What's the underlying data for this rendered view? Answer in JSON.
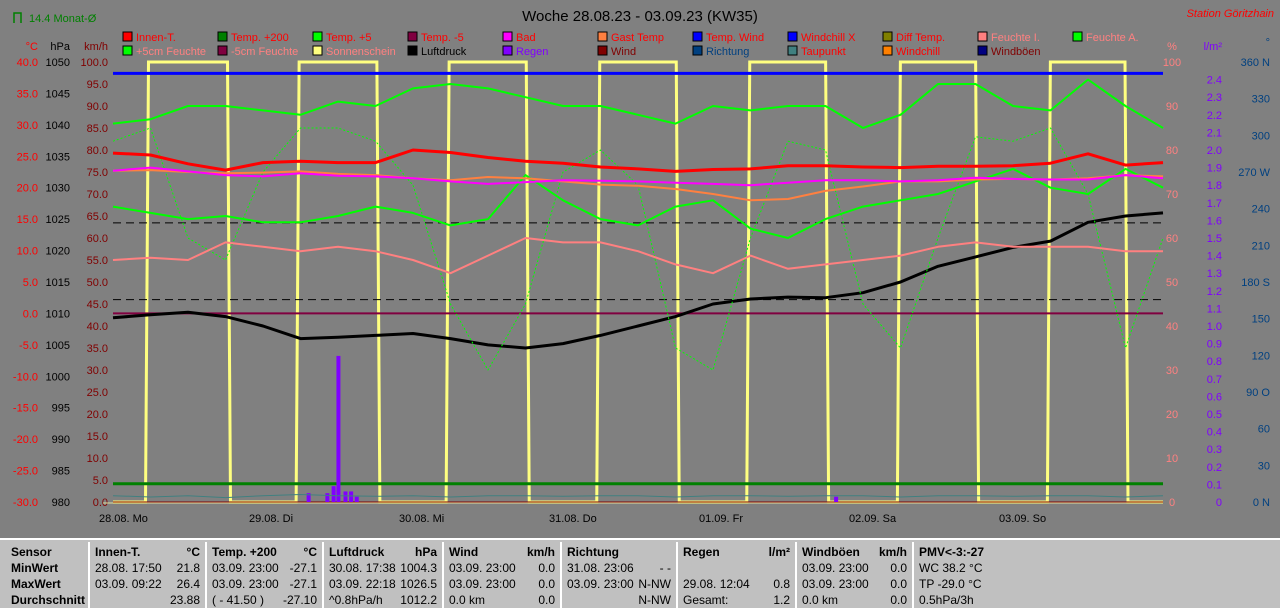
{
  "title": "Woche 28.08.23 - 03.09.23 (KW35)",
  "station": "Station Göritzhain",
  "monthly_avg": "14.4 Monat-Ø",
  "legend": [
    {
      "label": "Innen-T.",
      "color": "#ff0000",
      "text": "#ff0000"
    },
    {
      "label": "Temp. +200",
      "color": "#008000",
      "text": "#ff0000"
    },
    {
      "label": "Temp. +5",
      "color": "#00ff00",
      "text": "#ff0000"
    },
    {
      "label": "Temp. -5",
      "color": "#800040",
      "text": "#ff0000"
    },
    {
      "label": "Bad",
      "color": "#ff00ff",
      "text": "#ff0000"
    },
    {
      "label": "Gast Temp",
      "color": "#ff8040",
      "text": "#ff0000"
    },
    {
      "label": "Temp. Wind",
      "color": "#0000ff",
      "text": "#ff0000"
    },
    {
      "label": "Windchill X",
      "color": "#0000ff",
      "text": "#ff0000"
    },
    {
      "label": "Diff Temp.",
      "color": "#808000",
      "text": "#ff0000"
    },
    {
      "label": "Feuchte I.",
      "color": "#ff8080",
      "text": "#ff8080"
    },
    {
      "label": "Feuchte A.",
      "color": "#00ff00",
      "text": "#ff8080"
    },
    {
      "label": "+5cm Feuchte",
      "color": "#00ff00",
      "text": "#ff8080"
    },
    {
      "label": "-5cm Feuchte",
      "color": "#800040",
      "text": "#ff8080"
    },
    {
      "label": "Sonnenschein",
      "color": "#ffff80",
      "text": "#ff8080"
    },
    {
      "label": "Luftdruck",
      "color": "#000000",
      "text": "#000000"
    },
    {
      "label": "Regen",
      "color": "#8000ff",
      "text": "#8000ff"
    },
    {
      "label": "Wind",
      "color": "#800000",
      "text": "#800000"
    },
    {
      "label": "Richtung",
      "color": "#004080",
      "text": "#004080"
    },
    {
      "label": "Taupunkt",
      "color": "#408080",
      "text": "#ff0000"
    },
    {
      "label": "Windchill",
      "color": "#ff8000",
      "text": "#ff0000"
    },
    {
      "label": "Windböen",
      "color": "#000080",
      "text": "#800000"
    }
  ],
  "axes": {
    "celsius": {
      "unit": "°C",
      "color": "#ff0000",
      "ticks": [
        "40.0",
        "35.0",
        "30.0",
        "25.0",
        "20.0",
        "15.0",
        "10.0",
        "5.0",
        "0.0",
        "-5.0",
        "-10.0",
        "-15.0",
        "-20.0",
        "-25.0",
        "-30.0"
      ]
    },
    "hpa": {
      "unit": "hPa",
      "color": "#000000",
      "ticks": [
        "1050",
        "1045",
        "1040",
        "1035",
        "1030",
        "1025",
        "1020",
        "1015",
        "1010",
        "1005",
        "1000",
        "995",
        "990",
        "985",
        "980"
      ]
    },
    "kmh": {
      "unit": "km/h",
      "color": "#800000",
      "ticks": [
        "100.0",
        "95.0",
        "90.0",
        "85.0",
        "80.0",
        "75.0",
        "70.0",
        "65.0",
        "60.0",
        "55.0",
        "50.0",
        "45.0",
        "40.0",
        "35.0",
        "30.0",
        "25.0",
        "20.0",
        "15.0",
        "10.0",
        "5.0",
        "0.0"
      ]
    },
    "percent": {
      "unit": "%",
      "color": "#ff8080",
      "ticks": [
        "100",
        "90",
        "80",
        "70",
        "60",
        "50",
        "40",
        "30",
        "20",
        "10",
        "0"
      ]
    },
    "rain": {
      "unit": "l/m²",
      "color": "#8000ff",
      "ticks": [
        "2.4",
        "2.3",
        "2.2",
        "2.1",
        "2.0",
        "1.9",
        "1.8",
        "1.7",
        "1.6",
        "1.5",
        "1.4",
        "1.3",
        "1.2",
        "1.1",
        "1.0",
        "0.9",
        "0.8",
        "0.7",
        "0.6",
        "0.5",
        "0.4",
        "0.3",
        "0.2",
        "0.1",
        "0"
      ]
    },
    "direction": {
      "unit": "°",
      "color": "#004080",
      "ticks": [
        "360 N",
        "330",
        "300",
        "270 W",
        "240",
        "210",
        "180 S",
        "150",
        "120",
        "90 O",
        "60",
        "30",
        "0 N"
      ]
    }
  },
  "chart_data": {
    "type": "line",
    "title": "Woche 28.08.23 - 03.09.23 (KW35)",
    "x_labels": [
      "28.08.  Mo",
      "29.08.  Di",
      "30.08.  Mi",
      "31.08.  Do",
      "01.09.  Fr",
      "02.09.  Sa",
      "03.09.  So"
    ],
    "x_step_hours": 6,
    "x_range_hours": [
      0,
      168
    ],
    "series": [
      {
        "name": "Luftdruck",
        "axis": "hpa",
        "color": "#000000",
        "width": 3,
        "values": [
          1009.3,
          1009.8,
          1010.2,
          1009.5,
          1008,
          1006,
          1006.2,
          1006.5,
          1006.8,
          1006,
          1005,
          1004.5,
          1005.2,
          1006.5,
          1008,
          1009.5,
          1011.5,
          1012.3,
          1012.6,
          1012.5,
          1013.3,
          1015,
          1017.5,
          1019,
          1020.5,
          1021.5,
          1024.5,
          1025.5,
          1026
        ]
      },
      {
        "name": "+5cm Feuchte",
        "axis": "percent",
        "color": "#00ff00",
        "width": 2,
        "values": [
          86,
          87,
          90,
          90,
          89,
          88,
          91,
          90,
          94,
          95,
          94,
          92,
          90,
          90,
          88,
          86,
          90,
          89,
          90,
          90,
          85,
          88,
          95,
          95,
          90,
          89,
          96,
          90,
          85
        ]
      },
      {
        "name": "Feuchte A.",
        "axis": "percent",
        "color": "#00ff00",
        "width": 1,
        "dash": "2,2",
        "values": [
          82,
          85,
          60,
          55,
          75,
          85,
          85,
          82,
          72,
          45,
          30,
          45,
          75,
          80,
          72,
          35,
          30,
          60,
          82,
          80,
          45,
          35,
          60,
          83,
          82,
          85,
          70,
          35,
          60
        ]
      },
      {
        "name": "Temp. +5",
        "axis": "celsius",
        "color": "#00ff00",
        "width": 2,
        "values": [
          17,
          16,
          15,
          15.5,
          14.5,
          14.5,
          15.5,
          17,
          16,
          14,
          15,
          22,
          18,
          15,
          14,
          17,
          18,
          13.5,
          12,
          15,
          17,
          18,
          19,
          21,
          23,
          20,
          19,
          23,
          20
        ]
      },
      {
        "name": "Feuchte I.",
        "axis": "percent",
        "color": "#ff8080",
        "width": 2,
        "values": [
          55,
          55.5,
          55,
          59,
          58,
          57,
          58,
          57,
          55,
          52,
          56,
          60,
          59,
          59,
          57,
          54,
          52,
          56,
          53,
          54,
          55,
          56,
          58,
          59,
          58,
          58,
          58,
          57,
          57
        ]
      },
      {
        "name": "Gast Temp",
        "axis": "celsius",
        "color": "#ff8040",
        "width": 2,
        "values": [
          22.7,
          22.8,
          22.5,
          22.3,
          22.4,
          22.6,
          22.2,
          22.0,
          21.5,
          21.2,
          21.7,
          21.5,
          21.0,
          20.5,
          20.3,
          19.8,
          19.0,
          18.0,
          18.2,
          19.5,
          20.2,
          21.0,
          21.0,
          21.3,
          21.4,
          21.3,
          21.5,
          22.0,
          21.8
        ]
      },
      {
        "name": "Bad",
        "axis": "celsius",
        "color": "#ff00ff",
        "width": 2,
        "values": [
          22.7,
          23.2,
          22.6,
          22.0,
          21.8,
          22.3,
          21.9,
          21.8,
          21.5,
          21.0,
          20.6,
          20.9,
          21.2,
          21.1,
          21.0,
          20.8,
          20.6,
          20.4,
          20.8,
          21.2,
          21.2,
          21.0,
          21.2,
          21.6,
          21.4,
          21.3,
          21.3,
          22.0,
          21.5
        ]
      },
      {
        "name": "Innen-T.",
        "axis": "celsius",
        "color": "#ff0000",
        "width": 3,
        "values": [
          25.5,
          25.2,
          23.8,
          22.8,
          24.0,
          24.2,
          24.0,
          24.0,
          26.0,
          25.6,
          24.8,
          24.2,
          23.9,
          23.3,
          23.0,
          22.6,
          22.9,
          23.0,
          23.5,
          23.5,
          23.3,
          23.2,
          23.4,
          23.4,
          23.5,
          23.9,
          25.4,
          23.6,
          24.0
        ]
      },
      {
        "name": "Taupunkt",
        "axis": "celsius",
        "color": "#408080",
        "width": 1,
        "values": [
          -29,
          -29.2,
          -29,
          -29.3,
          -29,
          -28.8,
          -29,
          -29.1,
          -29,
          -29.2,
          -29,
          -29,
          -29.1,
          -29,
          -29,
          -29.2,
          -29,
          -29,
          -29.1,
          -29,
          -29,
          -29.2,
          -29,
          -29,
          -29.1,
          -29,
          -29,
          -29.2,
          -29
        ]
      }
    ],
    "constant_lines": [
      {
        "name": "Windchill X",
        "axis": "celsius",
        "value": 38.2,
        "color": "#0000ff",
        "width": 3
      },
      {
        "name": "Temp. -5",
        "axis": "celsius",
        "value": 0.0,
        "color": "#800040",
        "width": 2
      },
      {
        "name": "Temp. +200",
        "axis": "celsius",
        "value": -27.1,
        "color": "#008000",
        "width": 3
      },
      {
        "name": "Wind",
        "axis": "kmh",
        "value": 0.0,
        "color": "#800000",
        "width": 1
      },
      {
        "name": "Durchschnitt Innen-T.",
        "axis": "celsius",
        "value": 14.4,
        "color": "#000000",
        "width": 1,
        "dash": "8,5"
      },
      {
        "name": "Durchschnitt Luftdruck",
        "axis": "hpa",
        "value": 1012.2,
        "color": "#000000",
        "width": 1,
        "dash": "8,5"
      }
    ],
    "sunshine_hours": [
      [
        5.2,
        18.8
      ],
      [
        5.3,
        18.7
      ],
      [
        5.3,
        18.6
      ],
      [
        5.4,
        18.6
      ],
      [
        5.4,
        18.5
      ],
      [
        5.5,
        18.5
      ],
      [
        5.5,
        18.4
      ]
    ],
    "rain": [
      [
        31.3,
        0.05
      ],
      [
        34.3,
        0.05
      ],
      [
        35.3,
        0.09
      ],
      [
        36.07,
        0.83
      ],
      [
        37.2,
        0.06
      ],
      [
        38.1,
        0.06
      ],
      [
        39.0,
        0.03
      ],
      [
        115.7,
        0.03
      ]
    ]
  },
  "table": [
    {
      "header": "Sensor",
      "unit": "",
      "rows": [
        [
          "MinWert",
          ""
        ],
        [
          "MaxWert",
          ""
        ],
        [
          "Durchschnitt",
          ""
        ]
      ],
      "bold_rows": true
    },
    {
      "header": "Innen-T.",
      "unit": "°C",
      "rows": [
        [
          "28.08.  17:50",
          "21.8"
        ],
        [
          "03.09.  09:22",
          "26.4"
        ],
        [
          "",
          "23.88"
        ]
      ]
    },
    {
      "header": "Temp. +200",
      "unit": "°C",
      "rows": [
        [
          "03.09.  23:00",
          "-27.1"
        ],
        [
          "03.09.  23:00",
          "-27.1"
        ],
        [
          "( - 41.50 )",
          "-27.10"
        ]
      ]
    },
    {
      "header": "Luftdruck",
      "unit": "hPa",
      "rows": [
        [
          "30.08.  17:38",
          "1004.3"
        ],
        [
          "03.09.  22:18",
          "1026.5"
        ],
        [
          "^0.8hPa/h",
          "1012.2"
        ]
      ]
    },
    {
      "header": "Wind",
      "unit": "km/h",
      "rows": [
        [
          "03.09.  23:00",
          "0.0"
        ],
        [
          "03.09.  23:00",
          "0.0"
        ],
        [
          "0.0 km",
          "0.0"
        ]
      ]
    },
    {
      "header": "Richtung",
      "unit": "",
      "rows": [
        [
          "31.08.  23:06",
          "- -"
        ],
        [
          "03.09.  23:00",
          "N-NW"
        ],
        [
          "",
          "N-NW"
        ]
      ]
    },
    {
      "header": "Regen",
      "unit": "l/m²",
      "rows": [
        [
          "",
          ""
        ],
        [
          "29.08.  12:04",
          "0.8"
        ],
        [
          "Gesamt:",
          "1.2"
        ]
      ]
    },
    {
      "header": "Windböen",
      "unit": "km/h",
      "rows": [
        [
          "03.09.  23:00",
          "0.0"
        ],
        [
          "03.09.  23:00",
          "0.0"
        ],
        [
          "0.0 km",
          "0.0"
        ]
      ]
    },
    {
      "header": "PMV<-3:-27",
      "unit": "",
      "rows": [
        [
          "WC 38.2 °C",
          ""
        ],
        [
          "TP -29.0 °C",
          ""
        ],
        [
          "0.5hPa/3h",
          ""
        ]
      ]
    }
  ]
}
